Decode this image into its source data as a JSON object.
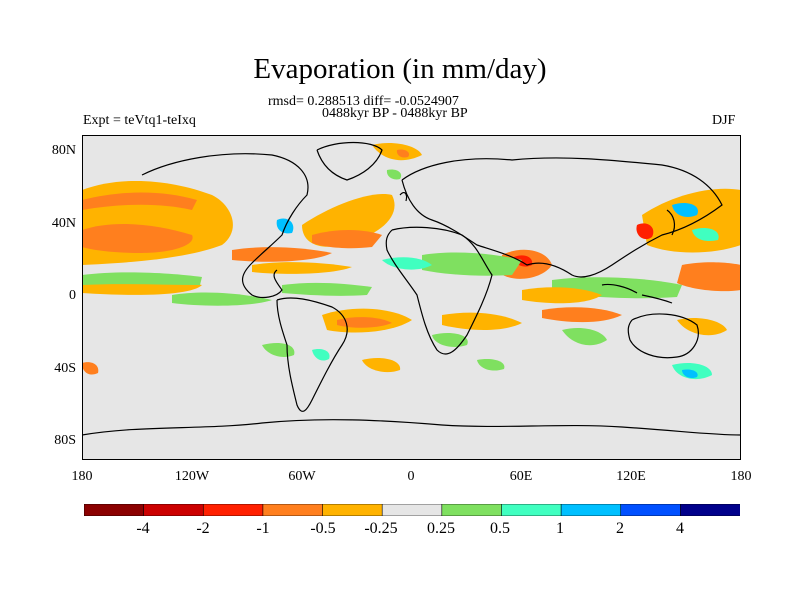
{
  "header": {
    "title": "Evaporation (in mm/day)",
    "stats": "rmsd= 0.288513 diff= -0.0524907",
    "period": "0488kyr BP - 0488kyr BP",
    "experiment": "Expt = teVtq1-teIxq",
    "season": "DJF"
  },
  "axes": {
    "y_labels": [
      "80N",
      "40N",
      "0",
      "40S",
      "80S"
    ],
    "x_labels": [
      "180",
      "120W",
      "60W",
      "0",
      "60E",
      "120E",
      "180"
    ]
  },
  "colorbar": {
    "labels": [
      "-4",
      "-2",
      "-1",
      "-0.5",
      "-0.25",
      "0.25",
      "0.5",
      "1",
      "2",
      "4"
    ],
    "colors": [
      "#8b0000",
      "#cc0000",
      "#ff2000",
      "#ff7f1e",
      "#ffb300",
      "#e6e6e6",
      "#7fe060",
      "#40ffc0",
      "#00c0ff",
      "#0050ff",
      "#00008b"
    ]
  },
  "map_colors": {
    "background": "#e6e6e6",
    "coast": "#000000"
  }
}
